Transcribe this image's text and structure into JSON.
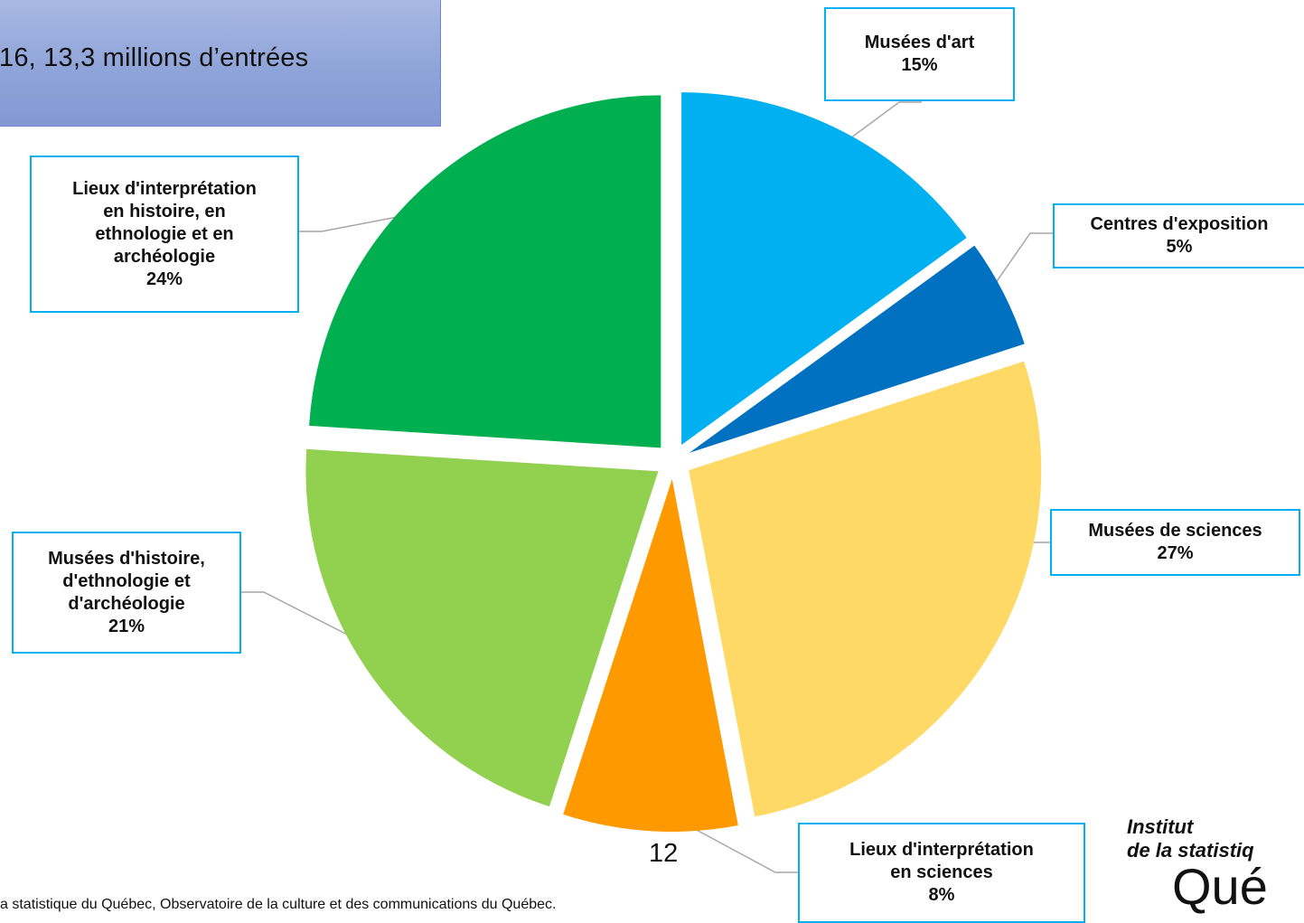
{
  "header": {
    "title": "16, 13,3 millions d’entrées"
  },
  "chart_data": {
    "type": "pie",
    "title": "",
    "slices": [
      {
        "name": "Musées d'art",
        "value": 15,
        "label": "15%",
        "color": "#00b0f0"
      },
      {
        "name": "Centres d'exposition",
        "value": 5,
        "label": "5%",
        "color": "#0070c0"
      },
      {
        "name": "Musées de sciences",
        "value": 27,
        "label": "27%",
        "color": "#ffd966"
      },
      {
        "name": "Lieux d'interprétation en sciences",
        "value": 8,
        "label": "8%",
        "color": "#ff9900"
      },
      {
        "name": "Musées d'histoire, d'ethnologie et d'archéologie",
        "value": 21,
        "label": "21%",
        "color": "#92d050"
      },
      {
        "name": "Lieux d'interprétation en histoire, en ethnologie et en archéologie",
        "value": 24,
        "label": "24%",
        "color": "#00b050"
      }
    ],
    "label_lines": {
      "0": [
        "Musées d'art",
        "15%"
      ],
      "1": [
        "Centres d'exposition",
        "5%"
      ],
      "2": [
        "Musées de sciences",
        "27%"
      ],
      "3": [
        "Lieux d'interprétation",
        "en sciences",
        "8%"
      ],
      "4": [
        "Musées d'histoire,",
        "d'ethnologie et",
        "d'archéologie",
        "21%"
      ],
      "5": [
        "Lieux d'interprétation",
        "en histoire, en",
        "ethnologie et en",
        "archéologie",
        "24%"
      ]
    }
  },
  "footer": {
    "page_number": "12",
    "source": "a statistique du Québec, Observatoire de la culture et des communications du Québec."
  },
  "logo": {
    "line1": "Institut",
    "line2": "de la statistiq",
    "line3": "Qué"
  },
  "colors": {
    "label_border": "#00b0f0",
    "leader_line": "#a6a6a6"
  }
}
